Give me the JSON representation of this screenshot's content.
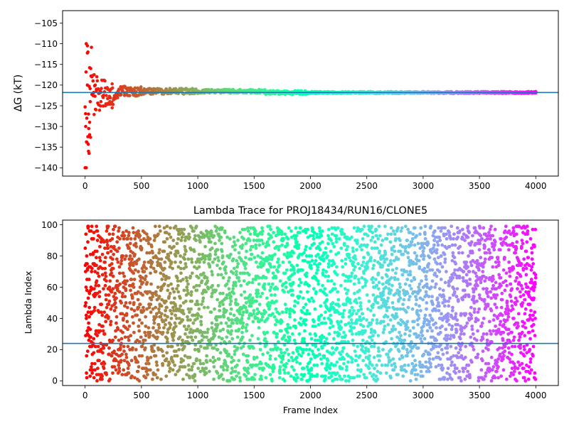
{
  "chart_data": [
    {
      "type": "scatter",
      "title": "",
      "xlabel": "",
      "ylabel": "ΔG (kT)",
      "xlim": [
        -200,
        4200
      ],
      "ylim": [
        -142,
        -102
      ],
      "xticks": [
        0,
        500,
        1000,
        1500,
        2000,
        2500,
        3000,
        3500,
        4000
      ],
      "yticks": [
        -140,
        -135,
        -130,
        -125,
        -120,
        -115,
        -110,
        -105
      ],
      "hline": -121.8,
      "hline_color": "#1f77b4",
      "colormap": "rainbow (red at frame 0 → violet at frame 4000)",
      "series": [
        {
          "description_points": [
            [
              0,
              -140
            ],
            [
              10,
              -140
            ],
            [
              5,
              -130
            ],
            [
              15,
              -128
            ],
            [
              20,
              -120
            ],
            [
              10,
              -110
            ],
            [
              20,
              -110.5
            ],
            [
              25,
              -112
            ],
            [
              30,
              -136
            ],
            [
              35,
              -136.5
            ],
            [
              40,
              -132
            ],
            [
              40,
              -129
            ],
            [
              30,
              -127
            ],
            [
              45,
              -124
            ],
            [
              50,
              -116
            ],
            [
              60,
              -118
            ],
            [
              70,
              -119
            ],
            [
              80,
              -117.5
            ],
            [
              90,
              -120
            ],
            [
              100,
              -121
            ],
            [
              120,
              -122
            ],
            [
              140,
              -124
            ],
            [
              160,
              -123
            ],
            [
              180,
              -125
            ],
            [
              200,
              -121
            ],
            [
              220,
              -124
            ],
            [
              240,
              -125.5
            ],
            [
              260,
              -123
            ],
            [
              300,
              -121
            ],
            [
              350,
              -122.5
            ],
            [
              400,
              -121
            ],
            [
              500,
              -122.3
            ],
            [
              600,
              -122
            ],
            [
              700,
              -121.6
            ],
            [
              800,
              -121.8
            ],
            [
              1000,
              -122
            ],
            [
              1500,
              -121.4
            ],
            [
              2000,
              -121.8
            ],
            [
              2500,
              -121.9
            ],
            [
              3000,
              -121.9
            ],
            [
              3500,
              -121.9
            ],
            [
              4000,
              -121.9
            ]
          ]
        }
      ]
    },
    {
      "type": "scatter",
      "title": "Lambda Trace for PROJ18434/RUN16/CLONE5",
      "xlabel": "Frame Index",
      "ylabel": "Lambda Index",
      "xlim": [
        -200,
        4200
      ],
      "ylim": [
        -3,
        103
      ],
      "xticks": [
        0,
        500,
        1000,
        1500,
        2000,
        2500,
        3000,
        3500,
        4000
      ],
      "yticks": [
        0,
        20,
        40,
        60,
        80,
        100
      ],
      "hline": 24,
      "hline_color": "#1f77b4",
      "colormap": "rainbow (red at frame 0 → violet at frame 4000)",
      "n_points": 4000,
      "x_range": [
        0,
        4000
      ],
      "y_range": [
        0,
        99
      ]
    }
  ]
}
